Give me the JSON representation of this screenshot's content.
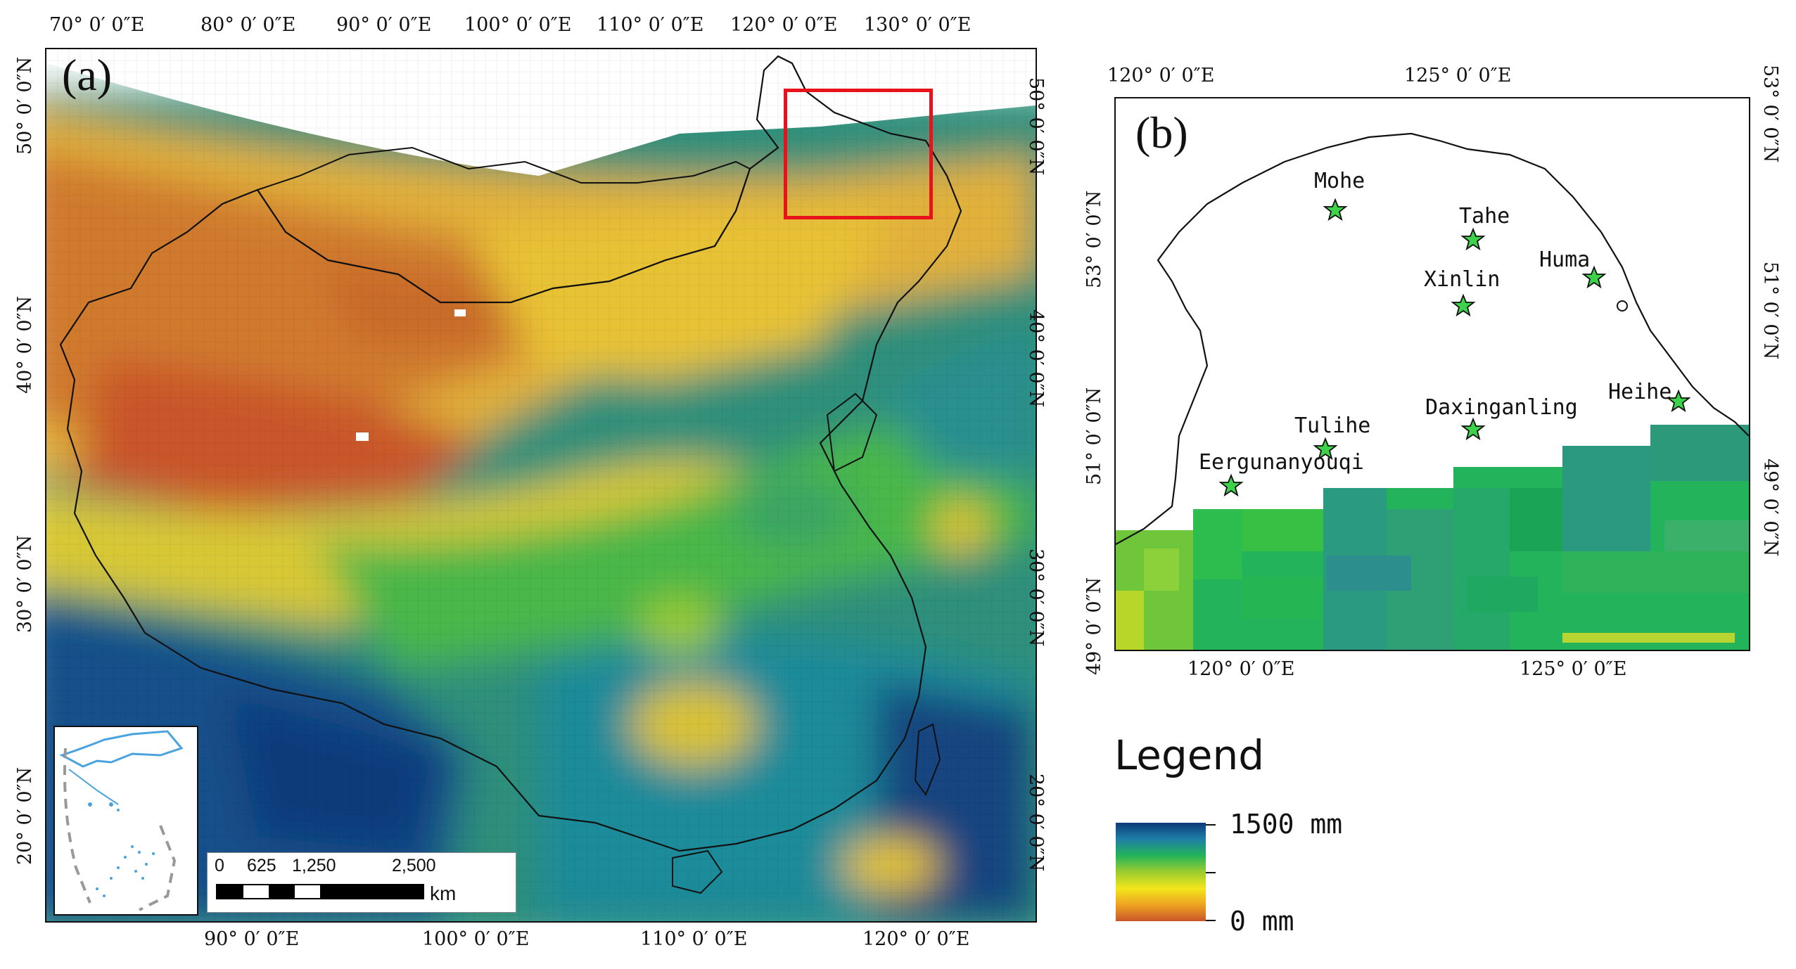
{
  "panel_a": {
    "label": "(a)",
    "top_ticks": [
      "70° 0′ 0″E",
      "80° 0′ 0″E",
      "90° 0′ 0″E",
      "100° 0′ 0″E",
      "110° 0′ 0″E",
      "120° 0′ 0″E",
      "130° 0′ 0″E"
    ],
    "bottom_ticks": [
      "90° 0′ 0″E",
      "100° 0′ 0″E",
      "110° 0′ 0″E",
      "120° 0′ 0″E"
    ],
    "left_ticks": [
      "50° 0′ 0″N",
      "40° 0′ 0″N",
      "30° 0′ 0″N",
      "20° 0′ 0″N"
    ],
    "right_ticks": [
      "50° 0′ 0″N",
      "40° 0′ 0″N",
      "30° 0′ 0″N",
      "20° 0′ 0″N"
    ],
    "scale_bar": {
      "labels": [
        "0",
        "625",
        "1,250",
        "2,500"
      ],
      "unit": "km"
    }
  },
  "panel_b": {
    "label": "(b)",
    "top_ticks": [
      "120° 0′ 0″E",
      "125° 0′ 0″E"
    ],
    "bottom_ticks": [
      "120° 0′ 0″E",
      "125° 0′ 0″E"
    ],
    "left_ticks": [
      "53° 0′ 0″N",
      "51° 0′ 0″N",
      "49° 0′ 0″N"
    ],
    "right_ticks": [
      "53° 0′ 0″N",
      "51° 0′ 0″N",
      "49° 0′ 0″N"
    ],
    "stations": [
      "Mohe",
      "Tahe",
      "Huma",
      "Xinlin",
      "Heihe",
      "Daxinganling",
      "Tulihe",
      "Eergunanyouqi"
    ]
  },
  "legend": {
    "title": "Legend",
    "max_label": "1500 mm",
    "min_label": "0 mm",
    "colors": [
      "#0d3a7a",
      "#1e7fa6",
      "#23b35a",
      "#9ccc2e",
      "#f2e61c",
      "#eea321",
      "#c9562a"
    ]
  }
}
